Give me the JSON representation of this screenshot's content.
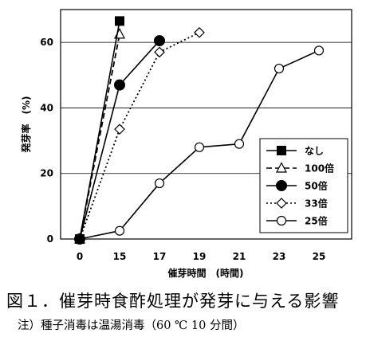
{
  "chart_data": {
    "type": "line",
    "title": "",
    "xlabel": "催芽時間　(時間)",
    "ylabel": "発芽率　(%)",
    "x_ticks": [
      "0",
      "15",
      "17",
      "19",
      "21",
      "23",
      "25"
    ],
    "y_ticks": [
      0,
      20,
      40,
      60
    ],
    "ylim": [
      0,
      70
    ],
    "grid": "horizontal",
    "legend_position": "bottom-right",
    "series": [
      {
        "name": "なし",
        "style": "solid",
        "marker": "filled-square",
        "points": [
          [
            "0",
            0
          ],
          [
            "15",
            66.5
          ]
        ]
      },
      {
        "name": "100倍",
        "style": "dashed",
        "marker": "open-triangle",
        "points": [
          [
            "0",
            0
          ],
          [
            "15",
            62.5
          ]
        ]
      },
      {
        "name": "50倍",
        "style": "solid",
        "marker": "filled-circle",
        "points": [
          [
            "0",
            0
          ],
          [
            "15",
            47
          ],
          [
            "17",
            60.5
          ]
        ]
      },
      {
        "name": "33倍",
        "style": "dotted",
        "marker": "open-diamond",
        "points": [
          [
            "0",
            0
          ],
          [
            "15",
            33.5
          ],
          [
            "17",
            57
          ],
          [
            "19",
            63
          ]
        ]
      },
      {
        "name": "25倍",
        "style": "solid",
        "marker": "open-circle",
        "points": [
          [
            "0",
            0
          ],
          [
            "15",
            2.5
          ],
          [
            "17",
            17
          ],
          [
            "19",
            28
          ],
          [
            "21",
            29
          ],
          [
            "23",
            52
          ],
          [
            "25",
            57.5
          ]
        ]
      }
    ]
  },
  "caption": "図１．催芽時食酢処理が発芽に与える影響",
  "note": "注）種子消毒は温湯消毒（60 ℃ 10 分間）"
}
